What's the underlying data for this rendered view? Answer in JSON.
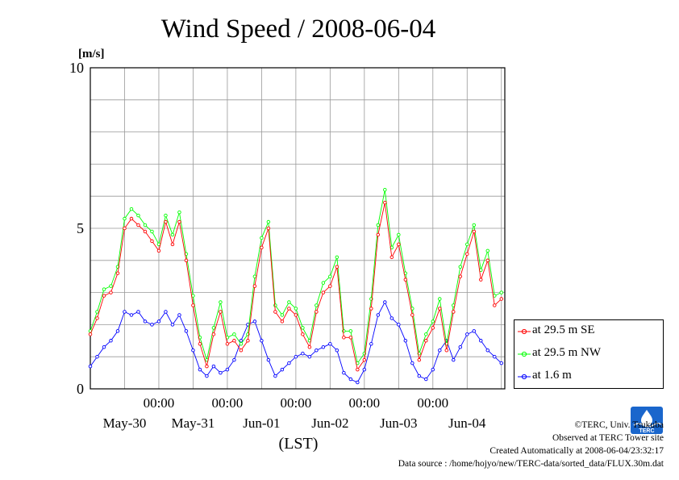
{
  "chart_data": {
    "type": "line",
    "title": "Wind Speed / 2008-06-04",
    "ylabel": "[m/s]",
    "xlabel": "(LST)",
    "ylim": [
      0,
      10
    ],
    "yticks": [
      0,
      5,
      10
    ],
    "grid": true,
    "legend_position": "right",
    "x_range_days": [
      0,
      6.05
    ],
    "x_minor_labels": [
      "00:00",
      "00:00",
      "00:00",
      "00:00",
      "00:00"
    ],
    "x_minor_positions_days": [
      1,
      2,
      3,
      4,
      5
    ],
    "x_day_labels": [
      "May-30",
      "May-31",
      "Jun-01",
      "Jun-02",
      "Jun-03",
      "Jun-04"
    ],
    "x_day_positions_days": [
      0.5,
      1.5,
      2.5,
      3.5,
      4.5,
      5.5
    ],
    "series": [
      {
        "name": "at 29.5 m SE",
        "color": "#ff0000",
        "x_days": [
          0.0,
          0.1,
          0.2,
          0.3,
          0.4,
          0.5,
          0.6,
          0.7,
          0.8,
          0.9,
          1.0,
          1.1,
          1.2,
          1.3,
          1.4,
          1.5,
          1.6,
          1.7,
          1.8,
          1.9,
          2.0,
          2.1,
          2.2,
          2.3,
          2.4,
          2.5,
          2.6,
          2.7,
          2.8,
          2.9,
          3.0,
          3.1,
          3.2,
          3.3,
          3.4,
          3.5,
          3.6,
          3.7,
          3.8,
          3.9,
          4.0,
          4.1,
          4.2,
          4.3,
          4.4,
          4.5,
          4.6,
          4.7,
          4.8,
          4.9,
          5.0,
          5.1,
          5.2,
          5.3,
          5.4,
          5.5,
          5.6,
          5.7,
          5.8,
          5.9,
          6.0
        ],
        "values": [
          1.7,
          2.2,
          2.9,
          3.0,
          3.6,
          5.0,
          5.3,
          5.1,
          4.9,
          4.6,
          4.3,
          5.2,
          4.5,
          5.2,
          4.0,
          2.6,
          1.4,
          0.7,
          1.7,
          2.4,
          1.4,
          1.5,
          1.2,
          1.5,
          3.2,
          4.4,
          5.0,
          2.4,
          2.1,
          2.5,
          2.3,
          1.7,
          1.3,
          2.4,
          3.0,
          3.2,
          3.8,
          1.6,
          1.6,
          0.6,
          0.9,
          2.5,
          4.8,
          5.8,
          4.1,
          4.5,
          3.4,
          2.3,
          0.9,
          1.5,
          1.9,
          2.5,
          1.2,
          2.4,
          3.5,
          4.2,
          4.9,
          3.4,
          4.0,
          2.6,
          2.8
        ]
      },
      {
        "name": "at 29.5 m NW",
        "color": "#00ff00",
        "x_days": [
          0.0,
          0.1,
          0.2,
          0.3,
          0.4,
          0.5,
          0.6,
          0.7,
          0.8,
          0.9,
          1.0,
          1.1,
          1.2,
          1.3,
          1.4,
          1.5,
          1.6,
          1.7,
          1.8,
          1.9,
          2.0,
          2.1,
          2.2,
          2.3,
          2.4,
          2.5,
          2.6,
          2.7,
          2.8,
          2.9,
          3.0,
          3.1,
          3.2,
          3.3,
          3.4,
          3.5,
          3.6,
          3.7,
          3.8,
          3.9,
          4.0,
          4.1,
          4.2,
          4.3,
          4.4,
          4.5,
          4.6,
          4.7,
          4.8,
          4.9,
          5.0,
          5.1,
          5.2,
          5.3,
          5.4,
          5.5,
          5.6,
          5.7,
          5.8,
          5.9,
          6.0
        ],
        "values": [
          1.8,
          2.4,
          3.1,
          3.2,
          3.8,
          5.3,
          5.6,
          5.4,
          5.1,
          4.9,
          4.5,
          5.4,
          4.8,
          5.5,
          4.2,
          2.9,
          1.6,
          0.9,
          1.9,
          2.7,
          1.6,
          1.7,
          1.4,
          1.7,
          3.5,
          4.7,
          5.2,
          2.6,
          2.3,
          2.7,
          2.5,
          1.9,
          1.5,
          2.6,
          3.3,
          3.5,
          4.1,
          1.8,
          1.8,
          0.8,
          1.1,
          2.8,
          5.1,
          6.2,
          4.4,
          4.8,
          3.6,
          2.5,
          1.1,
          1.7,
          2.1,
          2.8,
          1.4,
          2.6,
          3.8,
          4.5,
          5.1,
          3.7,
          4.3,
          2.9,
          3.0
        ]
      },
      {
        "name": "at 1.6 m",
        "color": "#0000ff",
        "x_days": [
          0.0,
          0.1,
          0.2,
          0.3,
          0.4,
          0.5,
          0.6,
          0.7,
          0.8,
          0.9,
          1.0,
          1.1,
          1.2,
          1.3,
          1.4,
          1.5,
          1.6,
          1.7,
          1.8,
          1.9,
          2.0,
          2.1,
          2.2,
          2.3,
          2.4,
          2.5,
          2.6,
          2.7,
          2.8,
          2.9,
          3.0,
          3.1,
          3.2,
          3.3,
          3.4,
          3.5,
          3.6,
          3.7,
          3.8,
          3.9,
          4.0,
          4.1,
          4.2,
          4.3,
          4.4,
          4.5,
          4.6,
          4.7,
          4.8,
          4.9,
          5.0,
          5.1,
          5.2,
          5.3,
          5.4,
          5.5,
          5.6,
          5.7,
          5.8,
          5.9,
          6.0
        ],
        "values": [
          0.7,
          1.0,
          1.3,
          1.5,
          1.8,
          2.4,
          2.3,
          2.4,
          2.1,
          2.0,
          2.1,
          2.4,
          2.0,
          2.3,
          1.8,
          1.2,
          0.6,
          0.4,
          0.7,
          0.5,
          0.6,
          0.9,
          1.5,
          2.0,
          2.1,
          1.5,
          0.9,
          0.4,
          0.6,
          0.8,
          1.0,
          1.1,
          1.0,
          1.2,
          1.3,
          1.4,
          1.2,
          0.5,
          0.3,
          0.2,
          0.6,
          1.4,
          2.3,
          2.7,
          2.2,
          2.0,
          1.5,
          0.8,
          0.4,
          0.3,
          0.6,
          1.2,
          1.5,
          0.9,
          1.3,
          1.7,
          1.8,
          1.5,
          1.2,
          1.0,
          0.8
        ]
      }
    ]
  },
  "credits": {
    "copyright": "©TERC, Univ. Tsukuba",
    "site": "Observed at TERC Tower site",
    "created": "Created Automatically at 2008-06-04/23:32:17",
    "source": "Data source : /home/hojyo/new/TERC-data/sorted_data/FLUX.30m.dat"
  },
  "logo": {
    "text": "TERC",
    "color": "#1a66cc"
  }
}
